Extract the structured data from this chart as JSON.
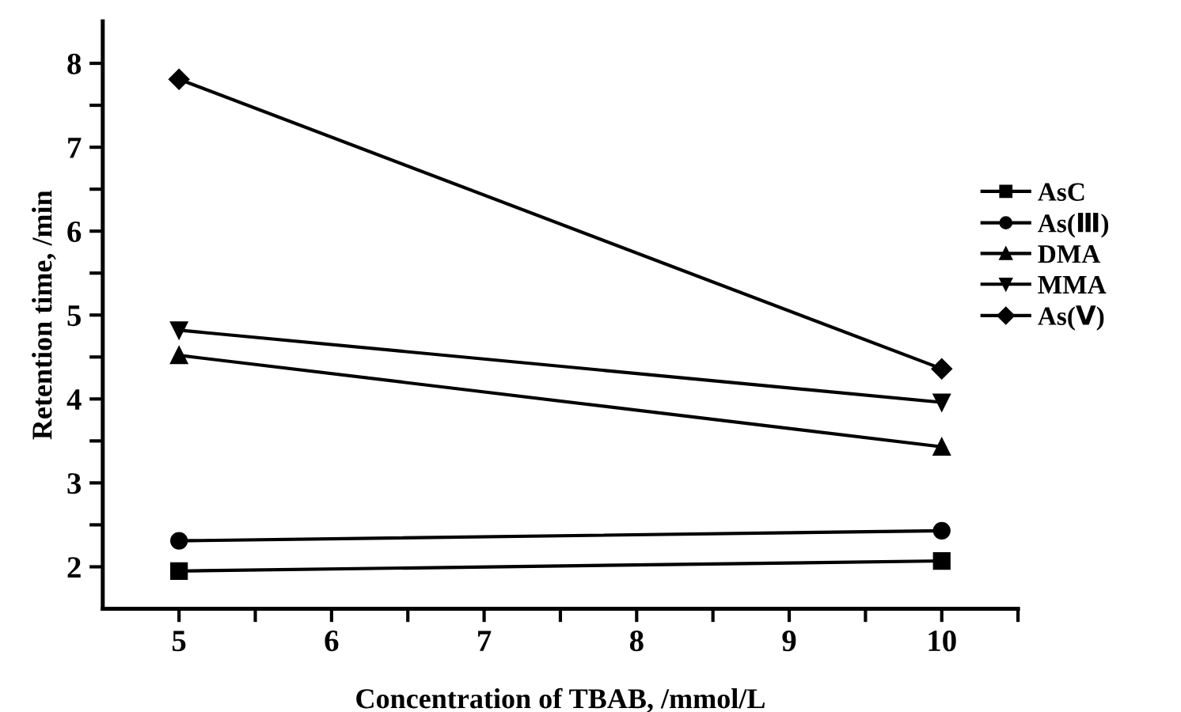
{
  "chart_data": {
    "type": "line",
    "xlabel": "Concentration of TBAB, /mmol/L",
    "ylabel": "Retention time, /min",
    "x": [
      5,
      10
    ],
    "series": [
      {
        "name": "AsC",
        "color": "#000000",
        "marker": "square",
        "values": [
          1.95,
          2.07
        ]
      },
      {
        "name": "As(Ⅲ)",
        "color": "#000000",
        "marker": "circle",
        "values": [
          2.31,
          2.43
        ]
      },
      {
        "name": "DMA",
        "color": "#000000",
        "marker": "triangle",
        "values": [
          4.52,
          3.43
        ]
      },
      {
        "name": "MMA",
        "color": "#000000",
        "marker": "triangle_down",
        "values": [
          4.82,
          3.96
        ]
      },
      {
        "name": "As(Ⅴ)",
        "color": "#000000",
        "marker": "diamond",
        "values": [
          7.81,
          4.36
        ]
      }
    ],
    "xlim": [
      4.5,
      10.5
    ],
    "ylim": [
      1.5,
      8.5
    ],
    "xticks": [
      5,
      {
        "value": 5.5,
        "label": null
      },
      6,
      {
        "value": 6.5,
        "label": null
      },
      7,
      {
        "value": 7.5,
        "label": null
      },
      8,
      {
        "value": 8.5,
        "label": null
      },
      9,
      {
        "value": 9.5,
        "label": null
      },
      10,
      {
        "value": 10.5,
        "label": null
      }
    ],
    "yticks": [
      2,
      {
        "value": 2.5,
        "label": null
      },
      3,
      {
        "value": 3.5,
        "label": null
      },
      4,
      {
        "value": 4.5,
        "label": null
      },
      5,
      {
        "value": 5.5,
        "label": null
      },
      6,
      {
        "value": 6.5,
        "label": null
      },
      7,
      {
        "value": 7.5,
        "label": null
      },
      8
    ],
    "grid": false,
    "legend": "right",
    "line_style": "solid"
  }
}
